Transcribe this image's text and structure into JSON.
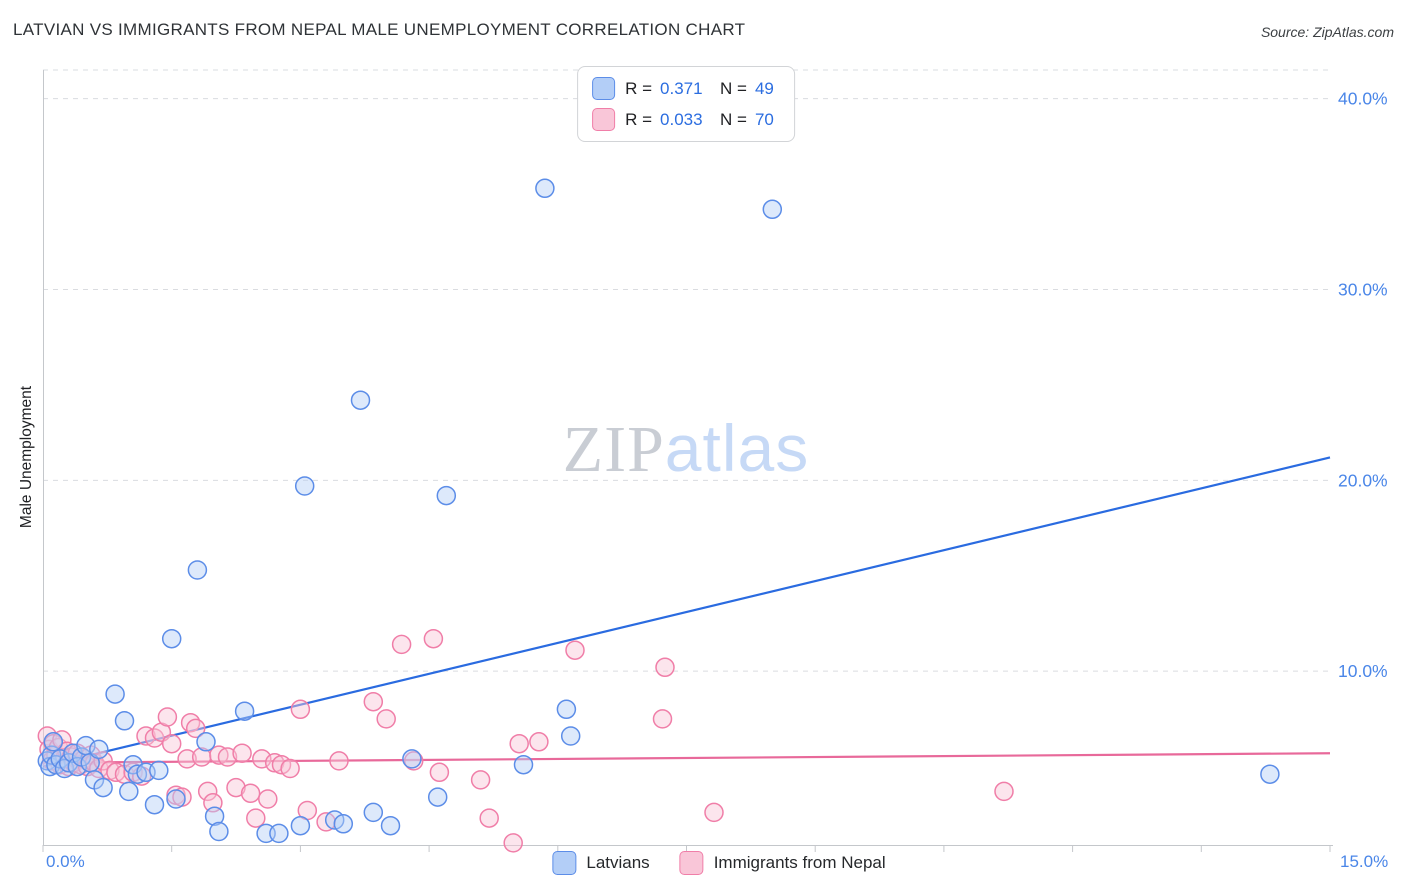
{
  "header": {
    "title": "LATVIAN VS IMMIGRANTS FROM NEPAL MALE UNEMPLOYMENT CORRELATION CHART",
    "source": "Source: ZipAtlas.com"
  },
  "watermark": {
    "zip": "ZIP",
    "atlas": "atlas"
  },
  "axes": {
    "y_label": "Male Unemployment",
    "x_min_label": "0.0%",
    "x_max_label": "15.0%",
    "tick_color": "#4a86e8",
    "y_ticks": [
      {
        "value": 40,
        "label": "40.0%"
      },
      {
        "value": 30,
        "label": "30.0%"
      },
      {
        "value": 20,
        "label": "20.0%"
      },
      {
        "value": 10,
        "label": "10.0%"
      }
    ]
  },
  "legend_top": {
    "series": [
      {
        "r_label": "R =",
        "r_value": "0.371",
        "n_label": "N =",
        "n_value": "49"
      },
      {
        "r_label": "R =",
        "r_value": "0.033",
        "n_label": "N =",
        "n_value": "70"
      }
    ]
  },
  "legend_bottom": {
    "items": [
      {
        "label": "Latvians"
      },
      {
        "label": "Immigrants from Nepal"
      }
    ]
  },
  "chart_data": {
    "type": "scatter",
    "title": "LATVIAN VS IMMIGRANTS FROM NEPAL MALE UNEMPLOYMENT CORRELATION CHART",
    "xlabel": "",
    "ylabel": "Male Unemployment",
    "xlim": [
      0,
      15
    ],
    "ylim": [
      0,
      41.5
    ],
    "grid_y": [
      10,
      20,
      30,
      40
    ],
    "legend_position": "bottom",
    "series": [
      {
        "name": "Latvians",
        "slug": "latvians",
        "fill": "#b3cef7",
        "stroke": "#5c8de8",
        "r": 0.371,
        "n": 49,
        "points": [
          [
            0.05,
            5.3
          ],
          [
            0.08,
            5.0
          ],
          [
            0.1,
            5.6
          ],
          [
            0.12,
            6.3
          ],
          [
            0.15,
            5.1
          ],
          [
            0.2,
            5.4
          ],
          [
            0.25,
            4.9
          ],
          [
            0.3,
            5.2
          ],
          [
            0.35,
            5.7
          ],
          [
            0.4,
            5.0
          ],
          [
            0.45,
            5.5
          ],
          [
            0.5,
            6.1
          ],
          [
            0.55,
            5.2
          ],
          [
            0.6,
            4.3
          ],
          [
            0.65,
            5.9
          ],
          [
            0.7,
            3.9
          ],
          [
            0.84,
            8.8
          ],
          [
            0.95,
            7.4
          ],
          [
            1.0,
            3.7
          ],
          [
            1.05,
            5.1
          ],
          [
            1.1,
            4.6
          ],
          [
            1.2,
            4.7
          ],
          [
            1.3,
            3.0
          ],
          [
            1.35,
            4.8
          ],
          [
            1.5,
            11.7
          ],
          [
            1.55,
            3.3
          ],
          [
            1.8,
            15.3
          ],
          [
            1.9,
            6.3
          ],
          [
            2.0,
            2.4
          ],
          [
            2.05,
            1.6
          ],
          [
            2.35,
            7.9
          ],
          [
            2.6,
            1.5
          ],
          [
            2.75,
            1.5
          ],
          [
            3.0,
            1.9
          ],
          [
            3.05,
            19.7
          ],
          [
            3.4,
            2.2
          ],
          [
            3.5,
            2.0
          ],
          [
            3.7,
            24.2
          ],
          [
            3.85,
            2.6
          ],
          [
            4.05,
            1.9
          ],
          [
            4.3,
            5.4
          ],
          [
            4.6,
            3.4
          ],
          [
            4.7,
            19.2
          ],
          [
            5.6,
            5.1
          ],
          [
            5.85,
            35.3
          ],
          [
            6.1,
            8.0
          ],
          [
            6.15,
            6.6
          ],
          [
            8.5,
            34.2
          ],
          [
            14.3,
            4.6
          ]
        ],
        "trend": {
          "x": [
            0,
            15
          ],
          "y": [
            5.0,
            21.2
          ],
          "color": "#2a6be0"
        }
      },
      {
        "name": "Immigrants from Nepal",
        "slug": "nepal",
        "fill": "#f9c6d8",
        "stroke": "#f07ea8",
        "r": 0.033,
        "n": 70,
        "points": [
          [
            0.05,
            6.6
          ],
          [
            0.07,
            5.9
          ],
          [
            0.1,
            5.3
          ],
          [
            0.12,
            6.2
          ],
          [
            0.15,
            5.6
          ],
          [
            0.18,
            6.0
          ],
          [
            0.2,
            5.1
          ],
          [
            0.22,
            6.4
          ],
          [
            0.25,
            5.4
          ],
          [
            0.28,
            5.8
          ],
          [
            0.3,
            5.0
          ],
          [
            0.33,
            5.5
          ],
          [
            0.36,
            5.2
          ],
          [
            0.4,
            5.7
          ],
          [
            0.44,
            5.1
          ],
          [
            0.48,
            5.4
          ],
          [
            0.52,
            5.0
          ],
          [
            0.56,
            5.6
          ],
          [
            0.6,
            5.2
          ],
          [
            0.65,
            4.9
          ],
          [
            0.7,
            5.3
          ],
          [
            0.78,
            4.8
          ],
          [
            0.85,
            4.7
          ],
          [
            0.95,
            4.6
          ],
          [
            1.05,
            4.7
          ],
          [
            1.15,
            4.5
          ],
          [
            1.2,
            6.6
          ],
          [
            1.3,
            6.5
          ],
          [
            1.38,
            6.8
          ],
          [
            1.45,
            7.6
          ],
          [
            1.5,
            6.2
          ],
          [
            1.55,
            3.5
          ],
          [
            1.62,
            3.4
          ],
          [
            1.68,
            5.4
          ],
          [
            1.72,
            7.3
          ],
          [
            1.78,
            7.0
          ],
          [
            1.85,
            5.5
          ],
          [
            1.92,
            3.7
          ],
          [
            1.98,
            3.1
          ],
          [
            2.05,
            5.6
          ],
          [
            2.15,
            5.5
          ],
          [
            2.25,
            3.9
          ],
          [
            2.32,
            5.7
          ],
          [
            2.42,
            3.6
          ],
          [
            2.48,
            2.3
          ],
          [
            2.55,
            5.4
          ],
          [
            2.62,
            3.3
          ],
          [
            2.7,
            5.2
          ],
          [
            2.78,
            5.1
          ],
          [
            2.88,
            4.9
          ],
          [
            3.0,
            8.0
          ],
          [
            3.08,
            2.7
          ],
          [
            3.3,
            2.1
          ],
          [
            3.45,
            5.3
          ],
          [
            3.85,
            8.4
          ],
          [
            4.0,
            7.5
          ],
          [
            4.18,
            11.4
          ],
          [
            4.32,
            5.3
          ],
          [
            4.55,
            11.7
          ],
          [
            4.62,
            4.7
          ],
          [
            5.1,
            4.3
          ],
          [
            5.2,
            2.3
          ],
          [
            5.48,
            1.0
          ],
          [
            5.55,
            6.2
          ],
          [
            5.78,
            6.3
          ],
          [
            6.2,
            11.1
          ],
          [
            7.22,
            7.5
          ],
          [
            7.25,
            10.2
          ],
          [
            7.82,
            2.6
          ],
          [
            11.2,
            3.7
          ]
        ],
        "trend": {
          "x": [
            0,
            15
          ],
          "y": [
            5.2,
            5.7
          ],
          "color": "#e8699a"
        }
      }
    ]
  }
}
